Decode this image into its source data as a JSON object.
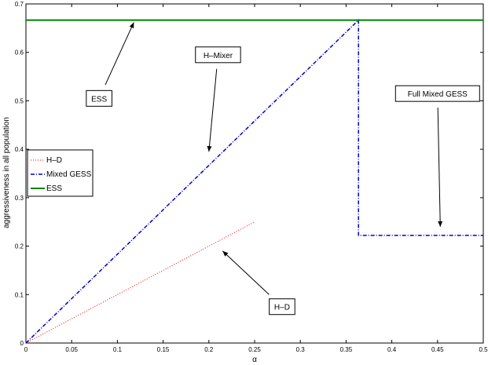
{
  "chart_data": {
    "type": "line",
    "title": "",
    "xlabel": "α",
    "ylabel": "aggressiveness  in all population",
    "xlim": [
      0,
      0.5
    ],
    "ylim": [
      0,
      0.7
    ],
    "xticks": [
      0,
      0.05,
      0.1,
      0.15,
      0.2,
      0.25,
      0.3,
      0.35,
      0.4,
      0.45,
      0.5
    ],
    "xtick_labels": [
      "0",
      "0.05",
      "0.1",
      "0.15",
      "0.2",
      "0.25",
      "0.3",
      "0.35",
      "0.4",
      "0.45",
      "0.5"
    ],
    "yticks": [
      0,
      0.1,
      0.2,
      0.3,
      0.4,
      0.5,
      0.6,
      0.7
    ],
    "ytick_labels": [
      "0",
      "0.1",
      "0.2",
      "0.3",
      "0.4",
      "0.5",
      "0.6",
      "0.7"
    ],
    "grid": false,
    "legend_position": "left-middle",
    "series": [
      {
        "name": "H–D",
        "color": "#ff0000",
        "style": "dotted",
        "x": [
          0,
          0.25
        ],
        "y": [
          0,
          0.25
        ]
      },
      {
        "name": "Mixed GESS",
        "color": "#0000cc",
        "style": "dash-dot",
        "x": [
          0,
          0.3636,
          0.3636,
          0.5
        ],
        "y": [
          0,
          0.6667,
          0.2222,
          0.2222
        ]
      },
      {
        "name": "ESS",
        "color": "#008000",
        "style": "solid",
        "x": [
          0,
          0.5
        ],
        "y": [
          0.6667,
          0.6667
        ]
      }
    ],
    "annotations": [
      {
        "text": "ESS",
        "box_at": [
          0.08,
          0.505
        ],
        "arrow_to": [
          0.118,
          0.662
        ]
      },
      {
        "text": "H–Mixer",
        "box_at": [
          0.21,
          0.595
        ],
        "arrow_to": [
          0.2,
          0.395
        ]
      },
      {
        "text": "Full Mixed GESS",
        "box_at": [
          0.45,
          0.515
        ],
        "arrow_to": [
          0.453,
          0.24
        ]
      },
      {
        "text": "H–D",
        "box_at": [
          0.28,
          0.075
        ],
        "arrow_to": [
          0.215,
          0.19
        ]
      }
    ]
  }
}
